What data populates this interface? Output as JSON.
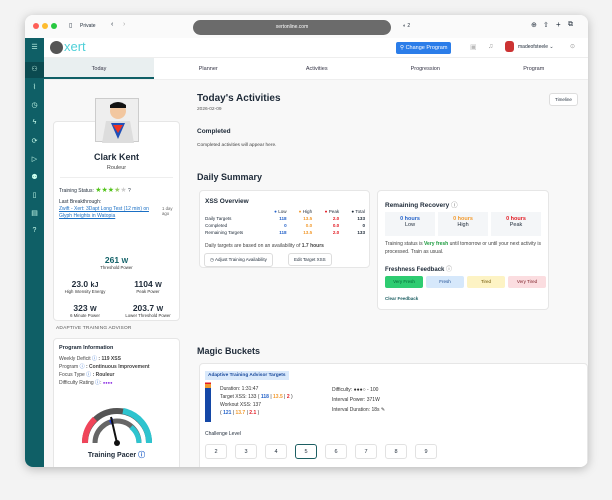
{
  "browser": {
    "private_label": "Private",
    "url": "xertonline.com",
    "shield_count": "2"
  },
  "header": {
    "logo": "xert",
    "change_program": "Change Program",
    "username": "madeofsteele"
  },
  "tabs": [
    {
      "label": "Today",
      "active": true
    },
    {
      "label": "Planner"
    },
    {
      "label": "Activities"
    },
    {
      "label": "Progression"
    },
    {
      "label": "Program"
    }
  ],
  "profile": {
    "name": "Clark Kent",
    "type": "Rouleur",
    "training_status_label": "Training Status:",
    "training_status_stars": 3.5,
    "last_breakthrough_label": "Last Breakthrough:",
    "last_breakthrough_link": "Zwift - Xert: 3Dapt Long Test (12 min) on Glyph Heights in Watopia",
    "last_breakthrough_ago": "1 day ago",
    "threshold_power": {
      "value": "261",
      "unit": "W",
      "label": "Threshold Power"
    },
    "hie": {
      "value": "23.0",
      "unit": "kJ",
      "label": "High Intensity Energy"
    },
    "peak_power": {
      "value": "1104",
      "unit": "W",
      "label": "Peak Power"
    },
    "six_min": {
      "value": "323",
      "unit": "W",
      "label": "6 Minute Power"
    },
    "ltp": {
      "value": "203.7",
      "unit": "W",
      "label": "Lower Threshold Power"
    }
  },
  "advisor": {
    "section_title": "ADAPTIVE TRAINING ADVISOR",
    "card_title": "Program Information",
    "weekly_deficit_label": "Weekly Deficit",
    "weekly_deficit": ": 119 XSS",
    "program_label": "Program",
    "program": ": Continuous Improvement",
    "focus_label": "Focus Type",
    "focus": ": Rouleur",
    "difficulty_label": "Difficulty Rating",
    "difficulty": "●●●●",
    "pacer_label": "Training Pacer"
  },
  "today": {
    "title": "Today's Activities",
    "date": "2026-02-09",
    "timeline": "Timeline",
    "completed_title": "Completed",
    "completed_empty": "Completed activities will appear here."
  },
  "daily_summary": {
    "title": "Daily Summary"
  },
  "xss": {
    "title": "XSS Overview",
    "headers": [
      "Low",
      "High",
      "Peak",
      "Total"
    ],
    "rows": [
      {
        "label": "Daily Targets",
        "values": [
          "118",
          "13.5",
          "2.0",
          "133"
        ]
      },
      {
        "label": "Completed",
        "values": [
          "0",
          "0.0",
          "0.0",
          "0"
        ]
      },
      {
        "label": "Remaining Targets",
        "values": [
          "118",
          "13.5",
          "2.0",
          "133"
        ]
      }
    ],
    "note_prefix": "Daily targets are based on an availability of",
    "note_hours": "1.7 hours",
    "adjust_btn": "Adjust Training Availability",
    "edit_btn": "Edit Target XSS"
  },
  "recovery": {
    "title": "Remaining Recovery",
    "items": [
      {
        "value": "0 hours",
        "label": "Low"
      },
      {
        "value": "0 hours",
        "label": "High"
      },
      {
        "value": "0 hours",
        "label": "Peak"
      }
    ],
    "status_prefix": "Training status is",
    "status": "Very fresh",
    "status_suffix": "until tomorrow or until your next activity is processed. Train as usual.",
    "feedback_title": "Freshness Feedback",
    "feedback": [
      "Very Fresh",
      "Fresh",
      "Tired",
      "Very Tired"
    ],
    "clear": "Clear Feedback"
  },
  "magic": {
    "title": "Magic Buckets",
    "badge": "Adaptive Training Advisor Targets",
    "duration": "Duration: 1:31:47",
    "target_prefix": "Target XSS: 133 (",
    "target": [
      "118",
      "13.5",
      "2"
    ],
    "workout_label": "Workout XSS: 137",
    "workout": [
      "121",
      "13.7",
      "2.1"
    ],
    "difficulty": "Difficulty: ●●●○ - 100",
    "interval_power": "Interval Power: 371W",
    "interval_duration": "Interval Duration: 18s",
    "challenge_label": "Challenge Level",
    "levels": [
      "2",
      "3",
      "4",
      "5",
      "6",
      "7",
      "8",
      "9"
    ],
    "selected_level": "5"
  },
  "colors": {
    "teal": "#0f5f66",
    "low": "#2563c9",
    "high": "#f29a2e",
    "peak": "#e31b23",
    "accent": "#2b7de9"
  }
}
